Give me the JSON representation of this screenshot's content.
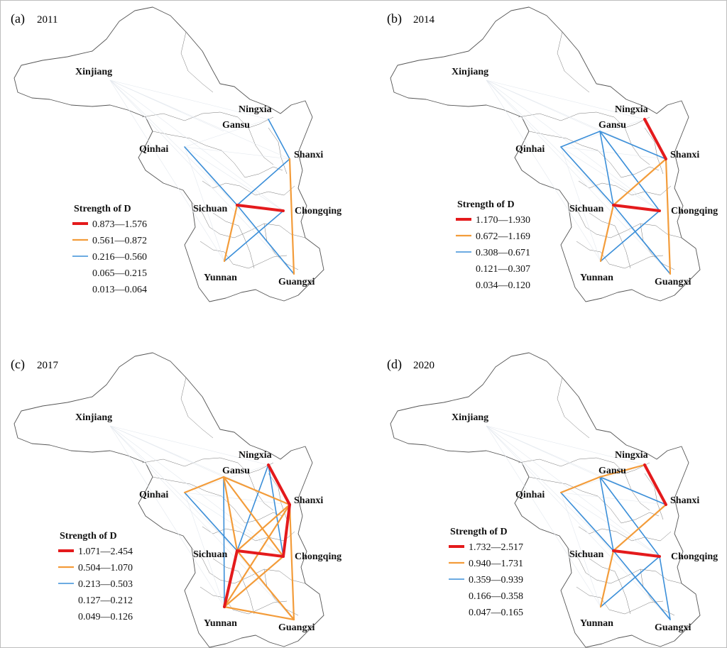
{
  "figure": {
    "panels": [
      {
        "id": "a",
        "label": "(a)",
        "year": "2011",
        "legend": {
          "title": "Strength of D",
          "classes": [
            "0.873—1.576",
            "0.561—0.872",
            "0.216—0.560",
            "0.065—0.215",
            "0.013—0.064"
          ]
        },
        "edges": [
          {
            "from": "Sichuan",
            "to": "Chongqing",
            "class": 0
          },
          {
            "from": "Sichuan",
            "to": "Yunnan",
            "class": 1
          },
          {
            "from": "Shanxi",
            "to": "Guangxi",
            "class": 1
          },
          {
            "from": "Qinhai",
            "to": "Sichuan",
            "class": 2
          },
          {
            "from": "Sichuan",
            "to": "Shanxi",
            "class": 2
          },
          {
            "from": "Sichuan",
            "to": "Guangxi",
            "class": 2
          },
          {
            "from": "Yunnan",
            "to": "Chongqing",
            "class": 2
          },
          {
            "from": "Ningxia",
            "to": "Shanxi",
            "class": 2
          }
        ]
      },
      {
        "id": "b",
        "label": "(b)",
        "year": "2014",
        "legend": {
          "title": "Strength of D",
          "classes": [
            "1.170—1.930",
            "0.672—1.169",
            "0.308—0.671",
            "0.121—0.307",
            "0.034—0.120"
          ]
        },
        "edges": [
          {
            "from": "Sichuan",
            "to": "Chongqing",
            "class": 0
          },
          {
            "from": "Ningxia",
            "to": "Shanxi",
            "class": 0
          },
          {
            "from": "Sichuan",
            "to": "Shanxi",
            "class": 1
          },
          {
            "from": "Sichuan",
            "to": "Yunnan",
            "class": 1
          },
          {
            "from": "Shanxi",
            "to": "Guangxi",
            "class": 1
          },
          {
            "from": "Qinhai",
            "to": "Gansu",
            "class": 2
          },
          {
            "from": "Qinhai",
            "to": "Sichuan",
            "class": 2
          },
          {
            "from": "Gansu",
            "to": "Sichuan",
            "class": 2
          },
          {
            "from": "Gansu",
            "to": "Shanxi",
            "class": 2
          },
          {
            "from": "Gansu",
            "to": "Chongqing",
            "class": 2
          },
          {
            "from": "Sichuan",
            "to": "Guangxi",
            "class": 2
          },
          {
            "from": "Chongqing",
            "to": "Yunnan",
            "class": 2
          }
        ]
      },
      {
        "id": "c",
        "label": "(c)",
        "year": "2017",
        "legend": {
          "title": "Strength of D",
          "classes": [
            "1.071—2.454",
            "0.504—1.070",
            "0.213—0.503",
            "0.127—0.212",
            "0.049—0.126"
          ]
        },
        "edges": [
          {
            "from": "Sichuan",
            "to": "Chongqing",
            "class": 0
          },
          {
            "from": "Sichuan",
            "to": "Yunnan",
            "class": 0
          },
          {
            "from": "Ningxia",
            "to": "Shanxi",
            "class": 0
          },
          {
            "from": "Shanxi",
            "to": "Chongqing",
            "class": 0
          },
          {
            "from": "Qinhai",
            "to": "Gansu",
            "class": 1
          },
          {
            "from": "Gansu",
            "to": "Shanxi",
            "class": 1
          },
          {
            "from": "Gansu",
            "to": "Sichuan",
            "class": 1
          },
          {
            "from": "Gansu",
            "to": "Chongqing",
            "class": 1
          },
          {
            "from": "Sichuan",
            "to": "Shanxi",
            "class": 1
          },
          {
            "from": "Yunnan",
            "to": "Guangxi",
            "class": 1
          },
          {
            "from": "Shanxi",
            "to": "Guangxi",
            "class": 1
          },
          {
            "from": "Yunnan",
            "to": "Shanxi",
            "class": 1
          },
          {
            "from": "Chongqing",
            "to": "Yunnan",
            "class": 1
          },
          {
            "from": "Sichuan",
            "to": "Guangxi",
            "class": 1
          },
          {
            "from": "Qinhai",
            "to": "Sichuan",
            "class": 2
          },
          {
            "from": "Gansu",
            "to": "Yunnan",
            "class": 2
          },
          {
            "from": "Ningxia",
            "to": "Sichuan",
            "class": 2
          },
          {
            "from": "Ningxia",
            "to": "Chongqing",
            "class": 2
          }
        ]
      },
      {
        "id": "d",
        "label": "(d)",
        "year": "2020",
        "legend": {
          "title": "Strength of D",
          "classes": [
            "1.732—2.517",
            "0.940—1.731",
            "0.359—0.939",
            "0.166—0.358",
            "0.047—0.165"
          ]
        },
        "edges": [
          {
            "from": "Sichuan",
            "to": "Chongqing",
            "class": 0
          },
          {
            "from": "Ningxia",
            "to": "Shanxi",
            "class": 0
          },
          {
            "from": "Qinhai",
            "to": "Gansu",
            "class": 1
          },
          {
            "from": "Sichuan",
            "to": "Shanxi",
            "class": 1
          },
          {
            "from": "Sichuan",
            "to": "Yunnan",
            "class": 1
          },
          {
            "from": "Gansu",
            "to": "Ningxia",
            "class": 1
          },
          {
            "from": "Gansu",
            "to": "Shanxi",
            "class": 2
          },
          {
            "from": "Gansu",
            "to": "Sichuan",
            "class": 2
          },
          {
            "from": "Gansu",
            "to": "Chongqing",
            "class": 2
          },
          {
            "from": "Qinhai",
            "to": "Sichuan",
            "class": 2
          },
          {
            "from": "Sichuan",
            "to": "Guangxi",
            "class": 2
          },
          {
            "from": "Chongqing",
            "to": "Yunnan",
            "class": 2
          },
          {
            "from": "Chongqing",
            "to": "Guangxi",
            "class": 2
          }
        ]
      }
    ],
    "provinces": [
      "Xinjiang",
      "Gansu",
      "Ningxia",
      "Qinhai",
      "Shanxi",
      "Sichuan",
      "Chongqing",
      "Yunnan",
      "Guangxi"
    ],
    "class_colors": [
      "#e41a1c",
      "#f39c3a",
      "#3b8fd9",
      "#cfd8e3",
      "#e3e8ee"
    ]
  }
}
